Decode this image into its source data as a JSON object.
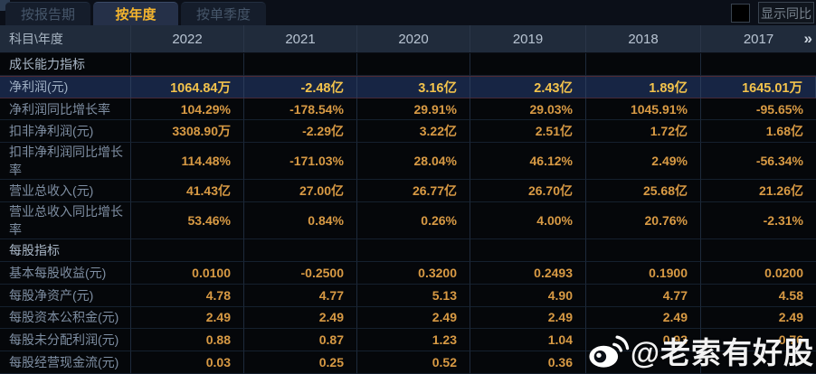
{
  "tabs": [
    {
      "label": "按报告期",
      "active": false
    },
    {
      "label": "按年度",
      "active": true
    },
    {
      "label": "按单季度",
      "active": false
    }
  ],
  "controls": {
    "show_yoy_label": "显示同比",
    "checkbox_checked": false
  },
  "table": {
    "header": {
      "first_col": "科目\\年度",
      "years": [
        "2022",
        "2021",
        "2020",
        "2019",
        "2018",
        "2017"
      ],
      "more_icon": "»"
    },
    "rows": [
      {
        "type": "section",
        "label": "成长能力指标",
        "values": [
          "",
          "",
          "",
          "",
          "",
          ""
        ]
      },
      {
        "type": "highlight",
        "label": "净利润(元)",
        "values": [
          "1064.84万",
          "-2.48亿",
          "3.16亿",
          "2.43亿",
          "1.89亿",
          "1645.01万"
        ]
      },
      {
        "type": "data",
        "label": "净利润同比增长率",
        "values": [
          "104.29%",
          "-178.54%",
          "29.91%",
          "29.03%",
          "1045.91%",
          "-95.65%"
        ]
      },
      {
        "type": "data",
        "label": "扣非净利润(元)",
        "values": [
          "3308.90万",
          "-2.29亿",
          "3.22亿",
          "2.51亿",
          "1.72亿",
          "1.68亿"
        ]
      },
      {
        "type": "data",
        "label": "扣非净利润同比增长率",
        "values": [
          "114.48%",
          "-171.03%",
          "28.04%",
          "46.12%",
          "2.49%",
          "-56.34%"
        ]
      },
      {
        "type": "data",
        "label": "营业总收入(元)",
        "values": [
          "41.43亿",
          "27.00亿",
          "26.77亿",
          "26.70亿",
          "25.68亿",
          "21.26亿"
        ]
      },
      {
        "type": "data",
        "label": "营业总收入同比增长率",
        "values": [
          "53.46%",
          "0.84%",
          "0.26%",
          "4.00%",
          "20.76%",
          "-2.31%"
        ]
      },
      {
        "type": "section",
        "label": "每股指标",
        "values": [
          "",
          "",
          "",
          "",
          "",
          ""
        ]
      },
      {
        "type": "data",
        "label": "基本每股收益(元)",
        "values": [
          "0.0100",
          "-0.2500",
          "0.3200",
          "0.2493",
          "0.1900",
          "0.0200"
        ]
      },
      {
        "type": "data",
        "label": "每股净资产(元)",
        "values": [
          "4.78",
          "4.77",
          "5.13",
          "4.90",
          "4.77",
          "4.58"
        ]
      },
      {
        "type": "data",
        "label": "每股资本公积金(元)",
        "values": [
          "2.49",
          "2.49",
          "2.49",
          "2.49",
          "2.49",
          "2.49"
        ]
      },
      {
        "type": "data",
        "label": "每股未分配利润(元)",
        "values": [
          "0.88",
          "0.87",
          "1.23",
          "1.04",
          "0.93",
          "0.76"
        ]
      },
      {
        "type": "data",
        "label": "每股经营现金流(元)",
        "values": [
          "0.03",
          "0.25",
          "0.52",
          "0.36",
          "",
          ""
        ]
      }
    ]
  },
  "watermark": {
    "handle": "@老索有好股",
    "icon": "weibo-icon"
  },
  "colors": {
    "value_text": "#d89a44",
    "highlight_value_text": "#f3c34c",
    "active_tab_text": "#f5b52e",
    "header_bg": "#202b3b",
    "highlight_row_bg": "#172544",
    "row_bg": "#05070a"
  }
}
